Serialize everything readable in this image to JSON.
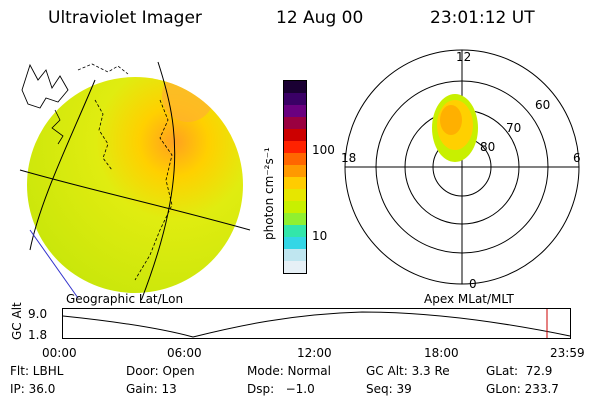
{
  "header": {
    "instrument": "Ultraviolet Imager",
    "date": "12 Aug 00",
    "time": "23:01:12 UT"
  },
  "colorbar": {
    "unit_label": "photon cm⁻²s⁻¹",
    "ticks": [
      "100",
      "10"
    ],
    "colors": [
      "#1a0033",
      "#3a0066",
      "#6a0080",
      "#9a0040",
      "#cc0000",
      "#ff2200",
      "#ff6600",
      "#ff9900",
      "#ffcc00",
      "#e6e600",
      "#c8f000",
      "#90f030",
      "#33e6aa",
      "#33d6e6",
      "#bfe6f0",
      "#e6f0f6"
    ]
  },
  "left_map": {
    "label": "Geographic Lat/Lon",
    "fill_color": "#cfe60a"
  },
  "polar_plot": {
    "label": "Apex MLat/MLT",
    "mlt_labels": [
      "12",
      "18",
      "6",
      "0"
    ],
    "lat_labels": [
      "60",
      "70",
      "80"
    ]
  },
  "altitude_plot": {
    "ylabel": "GC Alt",
    "y_ticks": [
      "9.0",
      "1.8"
    ],
    "x_ticks": [
      "00:00",
      "06:00",
      "12:00",
      "18:00",
      "23:59"
    ],
    "marker_color": "#cc0000"
  },
  "info": {
    "filter": "Flt: LBHL",
    "door": "Door: Open",
    "mode": "Mode: Normal",
    "gc_alt": "GC Alt: 3.3 Re",
    "glat": "GLat:  72.9",
    "ip": "IP: 36.0",
    "gain": "Gain: 13",
    "dsp": "Dsp:   −1.0",
    "seq": "Seq: 39",
    "glon": "GLon: 233.7"
  }
}
